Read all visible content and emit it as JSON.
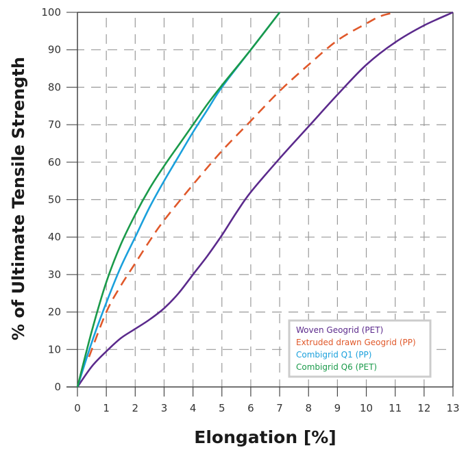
{
  "chart_data": {
    "type": "line",
    "title": "",
    "xlabel": "Elongation [%]",
    "ylabel": "% of Ultimate Tensile Strength",
    "xlim": [
      0,
      13
    ],
    "ylim": [
      0,
      100
    ],
    "xticks": [
      "0",
      "1",
      "2",
      "3",
      "4",
      "5",
      "6",
      "7",
      "8",
      "9",
      "10",
      "11",
      "12",
      "13"
    ],
    "yticks": [
      "0",
      "10",
      "20",
      "30",
      "40",
      "50",
      "60",
      "70",
      "80",
      "90",
      "100"
    ],
    "grid": true,
    "legend_position": "bottom-right",
    "series": [
      {
        "name": "Woven Geogrid (PET)",
        "color": "#5b2a8c",
        "style": "solid",
        "x": [
          0,
          0.5,
          1,
          1.5,
          2,
          2.5,
          3,
          3.5,
          4,
          4.5,
          5,
          5.5,
          6,
          7,
          8,
          9,
          10,
          11,
          12,
          13
        ],
        "y": [
          0,
          5.5,
          9.5,
          13,
          15.5,
          18,
          21,
          25,
          30,
          35,
          40.5,
          46.5,
          52,
          61,
          69.5,
          78,
          86,
          92,
          96.5,
          100
        ]
      },
      {
        "name": "Extruded drawn Geogrid (PP)",
        "color": "#e0582a",
        "style": "dashed",
        "x": [
          0.4,
          1,
          1.5,
          2,
          2.5,
          3,
          4,
          5,
          6,
          7,
          8,
          9,
          10,
          10.5,
          11
        ],
        "y": [
          8,
          20,
          27,
          33,
          39,
          44.5,
          54,
          63,
          71,
          79,
          86,
          92.5,
          97,
          99,
          100
        ]
      },
      {
        "name": "Combigrid Q1 (PP)",
        "color": "#1aa0dc",
        "style": "solid",
        "x": [
          0,
          0.5,
          1,
          1.5,
          2,
          2.5,
          3,
          3.5,
          4,
          4.5,
          5,
          6,
          7
        ],
        "y": [
          0,
          12,
          22.5,
          32,
          40,
          48,
          55,
          61.5,
          68,
          74,
          80,
          90,
          100
        ]
      },
      {
        "name": "Combigrid Q6 (PET)",
        "color": "#1a9a4a",
        "style": "solid",
        "x": [
          0,
          0.5,
          1,
          1.5,
          2,
          2.5,
          3,
          3.5,
          4,
          4.5,
          5,
          6,
          7
        ],
        "y": [
          0,
          15,
          28,
          38,
          46,
          53,
          59,
          64.5,
          70,
          75.5,
          80.5,
          90,
          100
        ]
      }
    ]
  }
}
